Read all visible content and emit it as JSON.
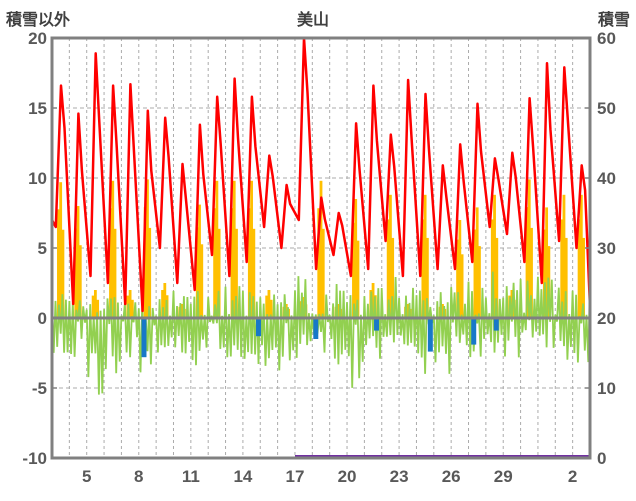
{
  "header": {
    "left_axis_title": "積雪以外",
    "chart_title": "美山",
    "right_axis_title": "積雪"
  },
  "chart_data": {
    "type": "line",
    "title": "美山",
    "grid": "on",
    "legend": "none",
    "left_axis": {
      "label": "積雪以外",
      "min": -10,
      "max": 20,
      "ticks": [
        20,
        15,
        10,
        5,
        0,
        -5,
        -10
      ],
      "dashed_gridlines_at": [
        15,
        10,
        5,
        -5
      ],
      "zero_line_at": 0
    },
    "right_axis": {
      "label": "積雪",
      "min": 0,
      "max": 60,
      "ticks": [
        60,
        50,
        40,
        30,
        20,
        10,
        0
      ]
    },
    "x_axis": {
      "unit": "day-of-month",
      "day_start": 3,
      "day_end": 34,
      "gridline_every_days": 1,
      "tick_days": [
        5,
        8,
        11,
        14,
        17,
        20,
        23,
        26,
        29,
        33
      ],
      "tick_labels": [
        "5",
        "8",
        "11",
        "14",
        "17",
        "20",
        "23",
        "26",
        "29",
        "2"
      ]
    },
    "series": {
      "temperature_red_line": {
        "color": "#FF0000",
        "axis": "left",
        "start_day": 3,
        "start_value": 7.0,
        "end_day": 34,
        "end_value": 0.8,
        "daily_min_max": [
          [
            6.5,
            16.6
          ],
          [
            1.0,
            14.6
          ],
          [
            3.0,
            18.9
          ],
          [
            2.5,
            16.6
          ],
          [
            1.0,
            16.7
          ],
          [
            0.5,
            14.8
          ],
          [
            5.0,
            14.3
          ],
          [
            2.5,
            11.0
          ],
          [
            2.0,
            13.8
          ],
          [
            4.5,
            15.8
          ],
          [
            3.0,
            17.1
          ],
          [
            4.0,
            15.8
          ],
          [
            6.5,
            11.6
          ],
          [
            5.0,
            9.5
          ],
          [
            7.0,
            20.0
          ],
          [
            3.5,
            8.6
          ],
          [
            4.5,
            7.5
          ],
          [
            3.0,
            13.9
          ],
          [
            3.5,
            16.6
          ],
          [
            5.5,
            13.1
          ],
          [
            3.0,
            17.0
          ],
          [
            3.0,
            16.0
          ],
          [
            3.5,
            10.9
          ],
          [
            3.5,
            12.4
          ],
          [
            4.0,
            15.3
          ],
          [
            6.5,
            11.4
          ],
          [
            6.0,
            11.8
          ],
          [
            4.0,
            15.7
          ],
          [
            2.5,
            18.2
          ],
          [
            5.5,
            17.9
          ],
          [
            5.0,
            10.9
          ]
        ]
      },
      "sunshine_orange_bars": {
        "color": "#FFC000",
        "axis": "left",
        "first_day": 3,
        "daily_values": [
          9.7,
          8.0,
          2.0,
          9.8,
          2.0,
          9.9,
          2.5,
          1.0,
          8.1,
          9.8,
          9.8,
          9.8,
          2.0,
          1.0,
          1.5,
          9.8,
          1.0,
          8.5,
          2.5,
          8.8,
          1.0,
          8.8,
          1.0,
          7.0,
          7.9,
          8.8,
          2.0,
          9.9,
          7.9,
          8.8,
          8.8
        ]
      },
      "green_oscillation_line": {
        "color": "#92D050",
        "axis": "left",
        "first_day": 3,
        "daily_envelope_min_max": [
          [
            -2.5,
            2.0
          ],
          [
            -3.0,
            1.5
          ],
          [
            -5.5,
            1.0
          ],
          [
            -4.0,
            1.5
          ],
          [
            -3.0,
            1.5
          ],
          [
            -4.5,
            1.0
          ],
          [
            -3.5,
            1.5
          ],
          [
            -3.0,
            2.0
          ],
          [
            -4.0,
            2.5
          ],
          [
            -3.5,
            2.0
          ],
          [
            -4.5,
            2.5
          ],
          [
            -3.5,
            2.0
          ],
          [
            -4.5,
            2.5
          ],
          [
            -4.0,
            2.0
          ],
          [
            -3.0,
            3.0
          ],
          [
            -2.5,
            3.0
          ],
          [
            -3.5,
            2.5
          ],
          [
            -5.0,
            2.0
          ],
          [
            -3.0,
            2.5
          ],
          [
            -2.5,
            3.0
          ],
          [
            -3.0,
            2.5
          ],
          [
            -4.8,
            2.0
          ],
          [
            -4.0,
            2.0
          ],
          [
            -3.0,
            2.5
          ],
          [
            -3.5,
            3.0
          ],
          [
            -2.5,
            3.5
          ],
          [
            -3.0,
            3.0
          ],
          [
            -2.0,
            3.5
          ],
          [
            -2.5,
            3.0
          ],
          [
            -3.0,
            2.5
          ],
          [
            -4.0,
            2.0
          ],
          [
            -1.5,
            5.0
          ]
        ]
      },
      "blue_bars": {
        "color": "#1878C8",
        "axis": "left",
        "points_day_value": [
          [
            8.3,
            -2.8
          ],
          [
            14.9,
            -1.3
          ],
          [
            18.2,
            -1.5
          ],
          [
            21.7,
            -0.9
          ],
          [
            24.8,
            -2.4
          ],
          [
            27.3,
            -1.9
          ],
          [
            28.6,
            -0.9
          ]
        ]
      },
      "snow_depth_purple_line": {
        "color": "#7030A0",
        "axis": "right",
        "start_day": 17,
        "end_day": 34,
        "value": 0
      }
    },
    "style_colors": {
      "plot_border": "#808080",
      "zero_line": "#808080",
      "gridline": "#ABABAB",
      "tick_label": "#595959",
      "title_text": "#404040"
    }
  }
}
